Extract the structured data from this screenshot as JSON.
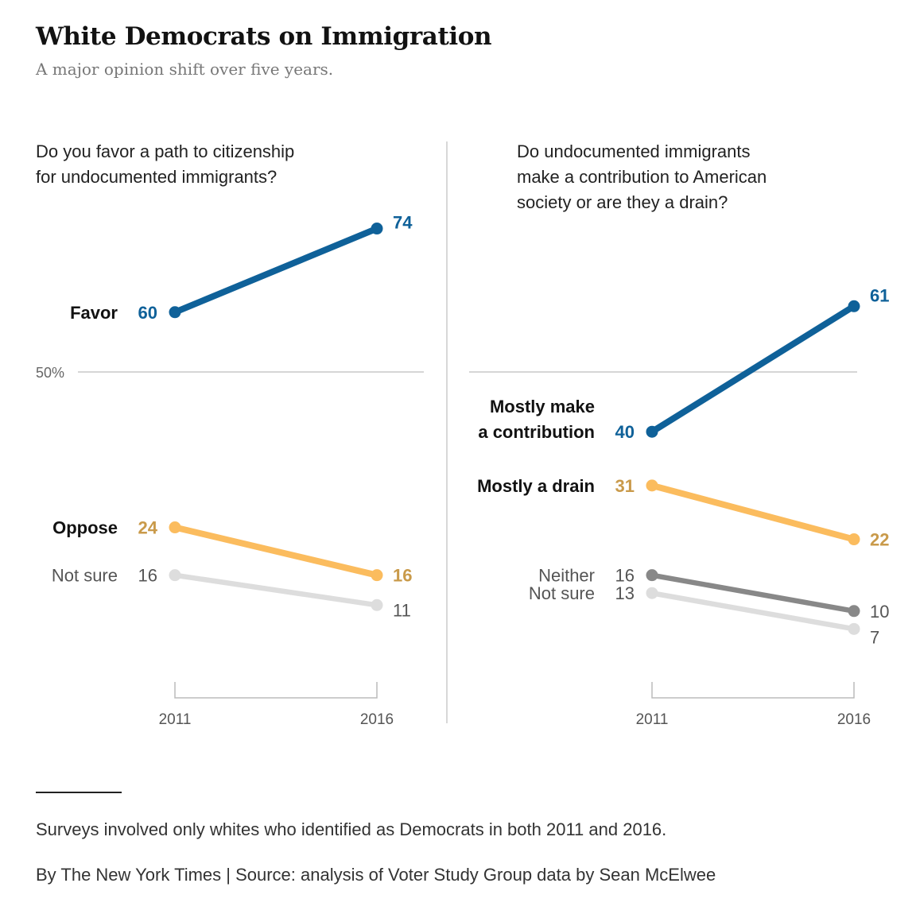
{
  "title": "White Democrats on Immigration",
  "subtitle": "A major opinion shift over five years.",
  "reference_label": "50%",
  "note": "Surveys involved only whites who identified as Democrats in both 2011 and 2016.",
  "source": "By The New York Times | Source: analysis of Voter Study Group data by Sean McElwee",
  "colors": {
    "blue": "#0f6199",
    "orange": "#fbbc5e",
    "orange_label": "#c99a4a",
    "dark_gray": "#888888",
    "light_gray": "#dddddd",
    "label_dark": "#121212",
    "label_muted": "#555555"
  },
  "chart_data": [
    {
      "type": "line",
      "title": "Do you favor a path to citizenship for undocumented immigrants?",
      "title_lines": [
        "Do you favor a path to citizenship",
        "for undocumented immigrants?"
      ],
      "x": [
        "2011",
        "2016"
      ],
      "reference_line": 50,
      "series": [
        {
          "name": "Favor",
          "label_lines": [
            "Favor"
          ],
          "values": [
            60,
            74
          ],
          "color": "blue",
          "emphasis": true
        },
        {
          "name": "Oppose",
          "label_lines": [
            "Oppose"
          ],
          "values": [
            24,
            16
          ],
          "color": "orange",
          "emphasis": true
        },
        {
          "name": "Not sure",
          "label_lines": [
            "Not sure"
          ],
          "values": [
            16,
            11
          ],
          "color": "light_gray",
          "emphasis": false
        }
      ]
    },
    {
      "type": "line",
      "title": "Do undocumented immigrants make a contribution to American society or are they a drain?",
      "title_lines": [
        "Do undocumented immigrants",
        "make a contribution to American",
        "society or are they a drain?"
      ],
      "x": [
        "2011",
        "2016"
      ],
      "reference_line": 50,
      "series": [
        {
          "name": "Mostly make a contribution",
          "label_lines": [
            "Mostly make",
            "a contribution"
          ],
          "values": [
            40,
            61
          ],
          "color": "blue",
          "emphasis": true
        },
        {
          "name": "Mostly a drain",
          "label_lines": [
            "Mostly a drain"
          ],
          "values": [
            31,
            22
          ],
          "color": "orange",
          "emphasis": true
        },
        {
          "name": "Neither",
          "label_lines": [
            "Neither"
          ],
          "values": [
            16,
            10
          ],
          "color": "dark_gray",
          "emphasis": false
        },
        {
          "name": "Not sure",
          "label_lines": [
            "Not sure"
          ],
          "values": [
            13,
            7
          ],
          "color": "light_gray",
          "emphasis": false
        }
      ]
    }
  ]
}
